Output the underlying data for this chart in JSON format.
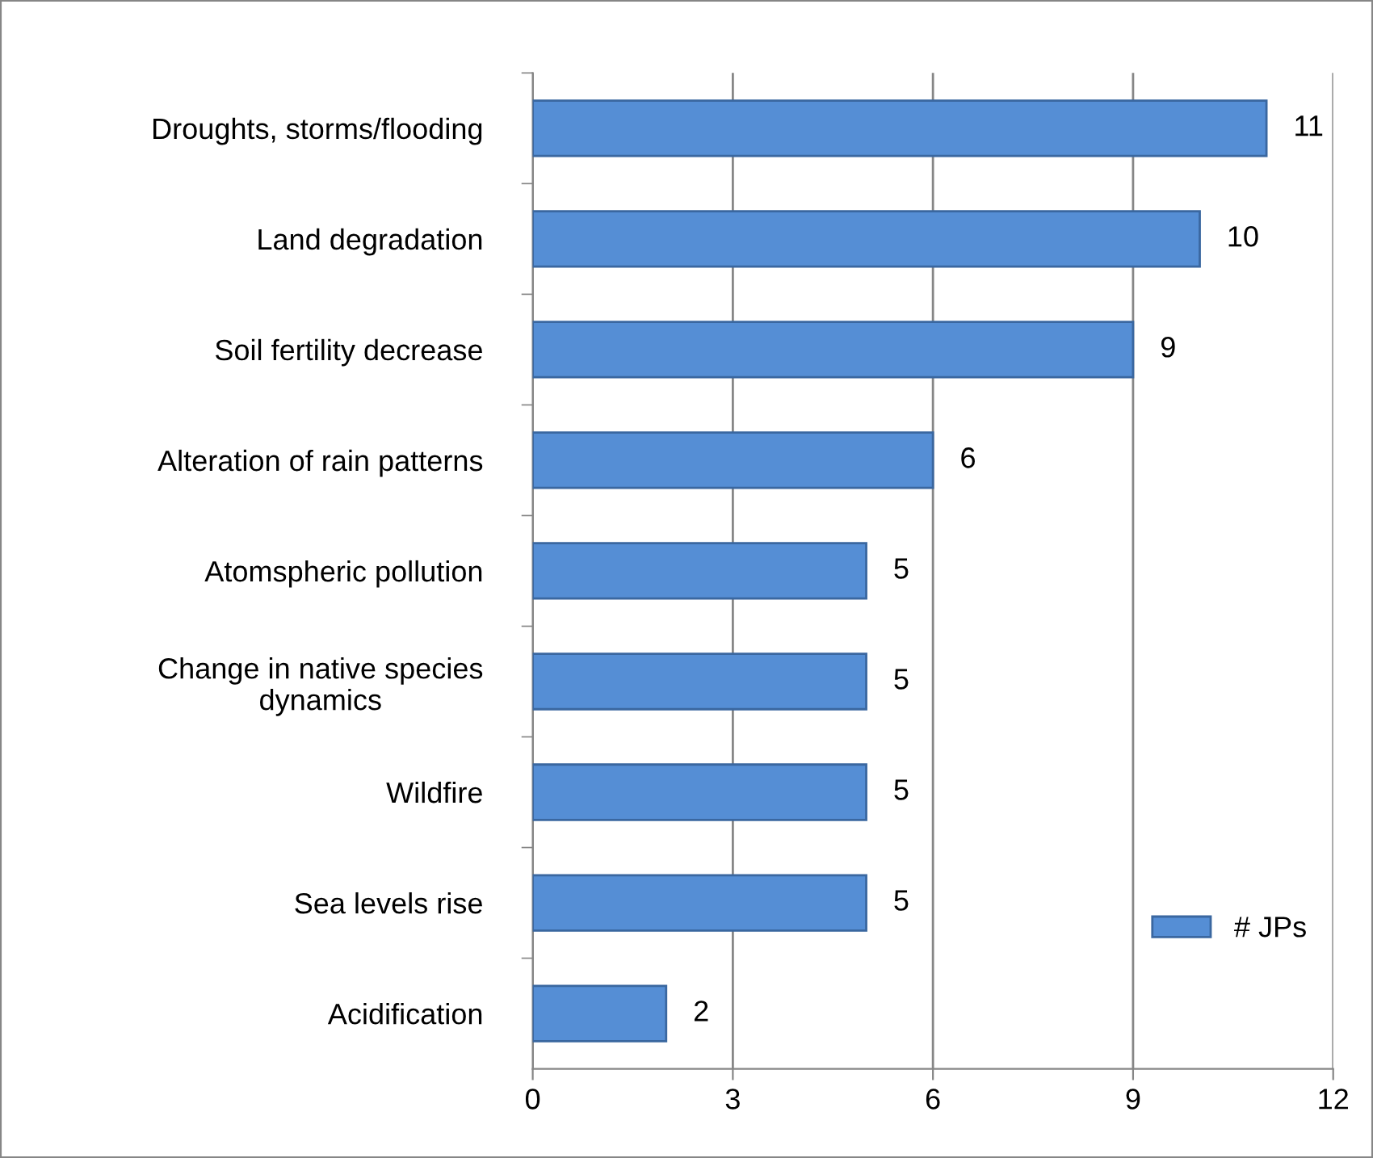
{
  "chart_data": {
    "type": "bar",
    "orientation": "horizontal",
    "categories": [
      "Droughts, storms/flooding",
      "Land degradation",
      "Soil fertility decrease",
      "Alteration of rain patterns",
      "Atomspheric pollution",
      "Change in native species\ndynamics",
      "Wildfire",
      "Sea levels rise",
      "Acidification"
    ],
    "series": [
      {
        "name": "# JPs",
        "color": "#558ed5",
        "values": [
          11,
          10,
          9,
          6,
          5,
          5,
          5,
          5,
          2
        ]
      }
    ],
    "xlim": [
      0,
      12
    ],
    "xticks": [
      0,
      3,
      6,
      9,
      12
    ],
    "grid": "x",
    "legend": "bottom right",
    "data_labels": true
  }
}
